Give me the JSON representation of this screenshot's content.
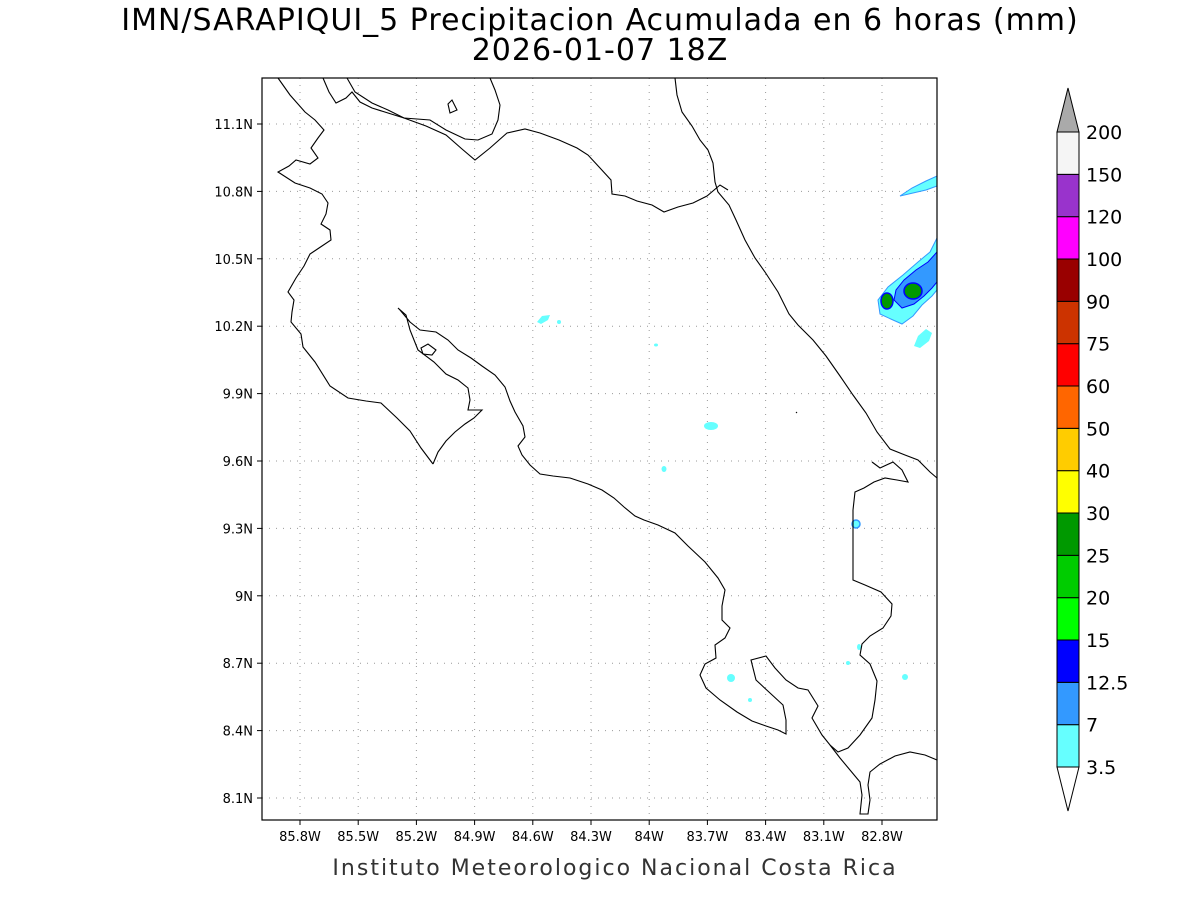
{
  "title": "IMN/SARAPIQUI_5 Precipitacion Acumulada en 6 horas (mm)",
  "subtitle": "2026-01-07 18Z",
  "footer": "Instituto Meteorologico Nacional Costa Rica",
  "lat_labels": [
    "11.1N",
    "10.8N",
    "10.5N",
    "10.2N",
    "9.9N",
    "9.6N",
    "9.3N",
    "9N",
    "8.7N",
    "8.4N",
    "8.1N"
  ],
  "lat_values": [
    11.1,
    10.8,
    10.5,
    10.2,
    9.9,
    9.6,
    9.3,
    9.0,
    8.7,
    8.4,
    8.1
  ],
  "lon_labels": [
    "85.8W",
    "85.5W",
    "85.2W",
    "84.9W",
    "84.6W",
    "84.3W",
    "84W",
    "83.7W",
    "83.4W",
    "83.1W",
    "82.8W"
  ],
  "lon_values": [
    -85.8,
    -85.5,
    -85.2,
    -84.9,
    -84.6,
    -84.3,
    -84.0,
    -83.7,
    -83.4,
    -83.1,
    -82.8
  ],
  "legend": {
    "levels": [
      "3.5",
      "7",
      "12.5",
      "15",
      "20",
      "25",
      "30",
      "40",
      "50",
      "60",
      "75",
      "90",
      "100",
      "120",
      "150",
      "200"
    ],
    "colors": [
      "#66ffff",
      "#3399ff",
      "#0000ff",
      "#00ff00",
      "#00cc00",
      "#009900",
      "#ffff00",
      "#ffcc00",
      "#ff6600",
      "#ff0000",
      "#cc3300",
      "#990000",
      "#ff00ff",
      "#9933cc",
      "#f5f5f5"
    ],
    "top_arrow_color": "#aaaaaa",
    "bottom_arrow_color": "#ffffff"
  }
}
